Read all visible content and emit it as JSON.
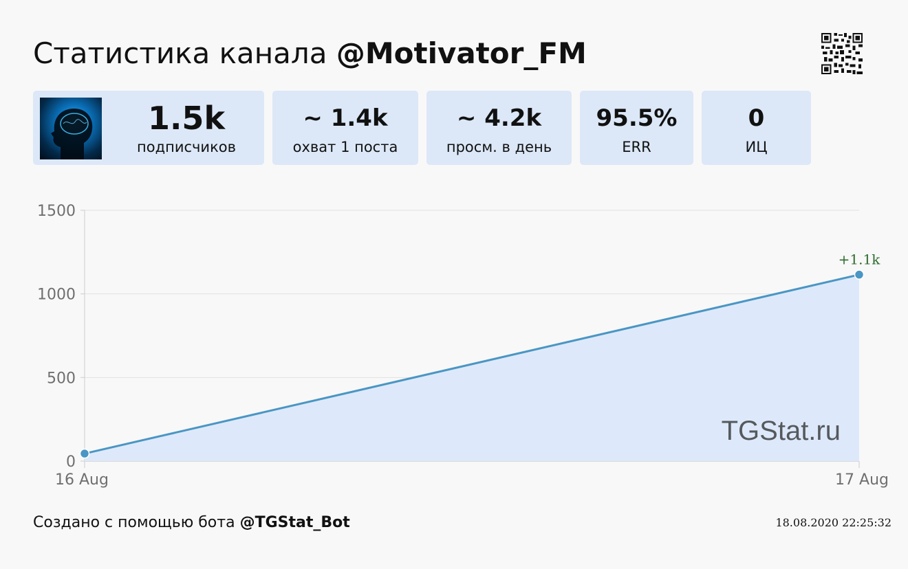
{
  "header": {
    "title_prefix": "Статистика канала",
    "channel": "@Motivator_FM"
  },
  "stats": [
    {
      "value": "1.5k",
      "label": "подписчиков"
    },
    {
      "value": "~ 1.4k",
      "label": "охват 1 поста"
    },
    {
      "value": "~ 4.2k",
      "label": "просм. в день"
    },
    {
      "value": "95.5%",
      "label": "ERR"
    },
    {
      "value": "0",
      "label": "ИЦ"
    }
  ],
  "chart_data": {
    "type": "area",
    "x": [
      "16 Aug",
      "17 Aug"
    ],
    "values": [
      45,
      1115
    ],
    "ylim": [
      0,
      1500
    ],
    "yticks": [
      0,
      500,
      1000,
      1500
    ],
    "annotation": "+1.1k",
    "grid": true,
    "watermark": "TGStat.ru",
    "colors": {
      "line": "#4a96c4",
      "fill": "#dde9fa",
      "annotation": "#2e6b2e"
    }
  },
  "footer": {
    "prefix": "Создано с помощью бота",
    "bot": "@TGStat_Bot",
    "timestamp": "18.08.2020 22:25:32"
  }
}
